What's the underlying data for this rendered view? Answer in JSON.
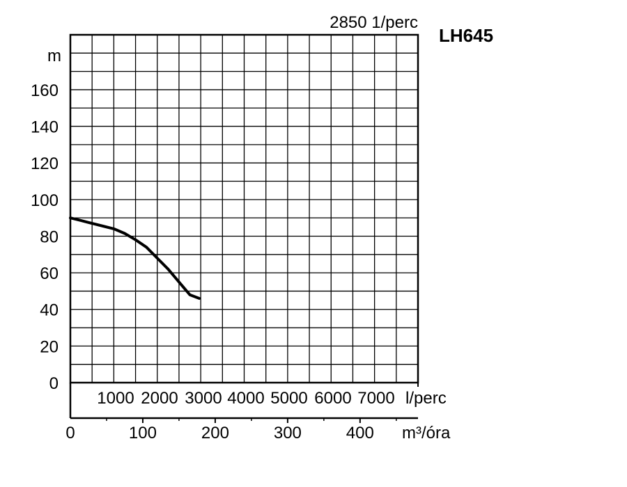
{
  "chart_data": {
    "type": "line",
    "model": "LH645",
    "speed_label": "2850 1/perc",
    "y_unit": "m",
    "y_ticks": [
      "0",
      "20",
      "40",
      "60",
      "80",
      "100",
      "120",
      "140",
      "160"
    ],
    "ylim": [
      0,
      190
    ],
    "grid": true,
    "secondary_x": {
      "unit": "l/perc",
      "ticks": [
        "1000",
        "2000",
        "3000",
        "4000",
        "5000",
        "6000",
        "7000"
      ]
    },
    "primary_x": {
      "unit": "m³/óra",
      "ticks": [
        "0",
        "100",
        "200",
        "300",
        "400"
      ],
      "xlim": [
        0,
        480
      ]
    },
    "series": [
      {
        "x": [
          0,
          15,
          30,
          45,
          60,
          75,
          90,
          105,
          120,
          135,
          150,
          165,
          178
        ],
        "y": [
          90,
          88.5,
          87,
          85.5,
          84,
          81.5,
          78,
          74,
          68,
          62,
          55,
          48,
          46
        ]
      }
    ]
  }
}
